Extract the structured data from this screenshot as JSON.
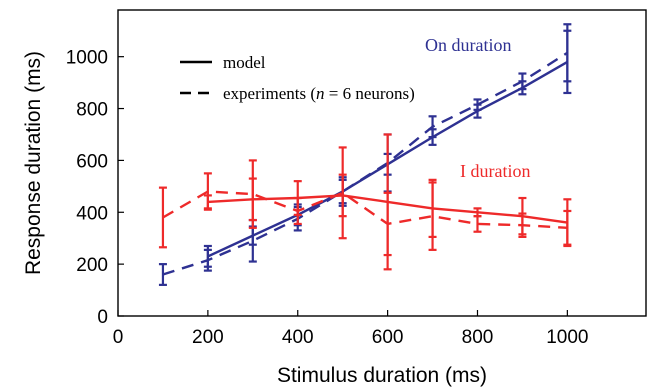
{
  "chart_data": {
    "type": "line",
    "title": "",
    "xlabel": "Stimulus duration (ms)",
    "ylabel": "Response duration (ms)",
    "xlim": [
      0,
      1175
    ],
    "ylim": [
      0,
      1180
    ],
    "xticks": [
      0,
      200,
      400,
      600,
      800,
      1000
    ],
    "yticks": [
      0,
      200,
      400,
      600,
      800,
      1000
    ],
    "grid": false,
    "legend": {
      "placement": "top-left",
      "entries": [
        {
          "label": "model",
          "style": "solid"
        },
        {
          "label_prefix": "experiments (",
          "label_italic": "n",
          "label_suffix": " = 6 neurons)",
          "style": "dashed"
        }
      ]
    },
    "series": [
      {
        "group": "on",
        "style": "solid",
        "color": "#2E3192",
        "x": [
          200,
          300,
          400,
          500,
          600,
          700,
          800,
          900,
          1000
        ],
        "y": [
          230,
          310,
          390,
          480,
          585,
          690,
          790,
          880,
          980
        ],
        "err": [
          40,
          35,
          40,
          45,
          40,
          30,
          25,
          25,
          120
        ]
      },
      {
        "group": "on",
        "style": "dashed",
        "color": "#2E3192",
        "x": [
          100,
          200,
          300,
          400,
          500,
          600,
          700,
          800,
          900,
          1000
        ],
        "y": [
          160,
          215,
          290,
          375,
          480,
          590,
          730,
          815,
          905,
          1015
        ],
        "err": [
          40,
          40,
          80,
          45,
          55,
          110,
          40,
          20,
          30,
          110
        ]
      },
      {
        "group": "i",
        "style": "solid",
        "color": "#EE2A2A",
        "x": [
          200,
          300,
          400,
          500,
          600,
          700,
          800,
          900,
          1000
        ],
        "y": [
          440,
          450,
          455,
          465,
          440,
          415,
          400,
          385,
          360
        ],
        "err": [
          25,
          80,
          65,
          80,
          260,
          110,
          15,
          70,
          90
        ]
      },
      {
        "group": "i",
        "style": "dashed",
        "color": "#EE2A2A",
        "x": [
          100,
          200,
          300,
          400,
          500,
          600,
          700,
          800,
          900,
          1000
        ],
        "y": [
          380,
          480,
          470,
          405,
          475,
          355,
          385,
          355,
          350,
          340
        ],
        "err": [
          115,
          70,
          130,
          50,
          175,
          120,
          130,
          30,
          45,
          65
        ]
      }
    ],
    "annotations": [
      {
        "text": "On duration",
        "color": "#2E3192"
      },
      {
        "text": "I duration",
        "color": "#EE2A2A"
      }
    ]
  }
}
